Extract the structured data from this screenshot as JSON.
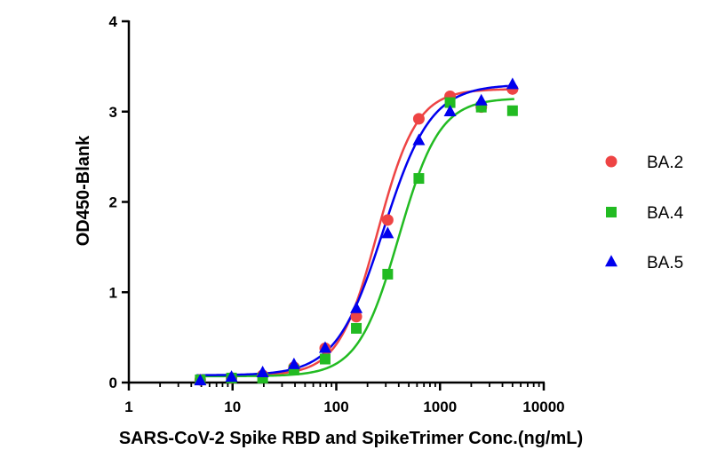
{
  "chart_data": {
    "type": "scatter",
    "title": "",
    "xlabel": "SARS-CoV-2 Spike RBD and SpikeTrimer Conc.(ng/mL)",
    "ylabel": "OD450-Blank",
    "x_scale": "log",
    "xlim": [
      1,
      10000
    ],
    "ylim": [
      0,
      4
    ],
    "x_ticks": [
      1,
      10,
      100,
      1000,
      10000
    ],
    "x_tick_labels": [
      "1",
      "10",
      "100",
      "1000",
      "10000"
    ],
    "y_ticks": [
      0,
      1,
      2,
      3,
      4
    ],
    "y_tick_labels": [
      "0",
      "1",
      "2",
      "3",
      "4"
    ],
    "grid": false,
    "legend_position": "right",
    "fit": "4PL sigmoid curve per series",
    "series": [
      {
        "name": "BA.2",
        "marker": "circle",
        "color": "#ee4444",
        "x": [
          4.88,
          9.77,
          19.5,
          39.1,
          78.1,
          156,
          313,
          625,
          1250,
          2500,
          5000
        ],
        "y": [
          0.03,
          0.05,
          0.08,
          0.17,
          0.38,
          0.73,
          1.8,
          2.92,
          3.17,
          3.05,
          3.25
        ],
        "fit": {
          "bottom": 0.08,
          "top": 3.25,
          "ec50": 250,
          "hill": 2.3
        }
      },
      {
        "name": "BA.4",
        "marker": "square",
        "color": "#22bb22",
        "x": [
          4.88,
          9.77,
          19.5,
          39.1,
          78.1,
          156,
          313,
          625,
          1250,
          2500,
          5000
        ],
        "y": [
          0.03,
          0.05,
          0.05,
          0.14,
          0.26,
          0.6,
          1.2,
          2.26,
          3.1,
          3.05,
          3.01
        ],
        "fit": {
          "bottom": 0.07,
          "top": 3.15,
          "ec50": 400,
          "hill": 2.2
        }
      },
      {
        "name": "BA.5",
        "marker": "triangle",
        "color": "#0000ee",
        "x": [
          4.88,
          9.77,
          19.5,
          39.1,
          78.1,
          156,
          313,
          625,
          1250,
          2500,
          5000
        ],
        "y": [
          0.02,
          0.06,
          0.11,
          0.2,
          0.38,
          0.82,
          1.65,
          2.68,
          3.0,
          3.12,
          3.3
        ],
        "fit": {
          "bottom": 0.08,
          "top": 3.3,
          "ec50": 285,
          "hill": 1.9
        }
      }
    ]
  }
}
